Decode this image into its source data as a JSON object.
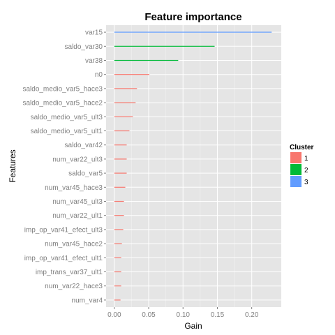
{
  "chart_data": {
    "type": "bar",
    "orientation": "horizontal",
    "title": "Feature importance",
    "xlabel": "Gain",
    "ylabel": "Features",
    "xlim": [
      -0.012,
      0.243
    ],
    "x_ticks": [
      0.0,
      0.05,
      0.1,
      0.15,
      0.2
    ],
    "x_tick_labels": [
      "0.00",
      "0.05",
      "0.10",
      "0.15",
      "0.20"
    ],
    "grid": true,
    "legend_position": "right",
    "legend_title": "Cluster",
    "clusters": [
      {
        "name": "1",
        "color": "#F8766D"
      },
      {
        "name": "2",
        "color": "#00BA38"
      },
      {
        "name": "3",
        "color": "#619CFF"
      }
    ],
    "bars": [
      {
        "feature": "var15",
        "gain": 0.229,
        "cluster": "3"
      },
      {
        "feature": "saldo_var30",
        "gain": 0.146,
        "cluster": "2"
      },
      {
        "feature": "var38",
        "gain": 0.093,
        "cluster": "2"
      },
      {
        "feature": "n0",
        "gain": 0.051,
        "cluster": "1"
      },
      {
        "feature": "saldo_medio_var5_hace3",
        "gain": 0.033,
        "cluster": "1"
      },
      {
        "feature": "saldo_medio_var5_hace2",
        "gain": 0.031,
        "cluster": "1"
      },
      {
        "feature": "saldo_medio_var5_ult3",
        "gain": 0.027,
        "cluster": "1"
      },
      {
        "feature": "saldo_medio_var5_ult1",
        "gain": 0.022,
        "cluster": "1"
      },
      {
        "feature": "saldo_var42",
        "gain": 0.018,
        "cluster": "1"
      },
      {
        "feature": "num_var22_ult3",
        "gain": 0.018,
        "cluster": "1"
      },
      {
        "feature": "saldo_var5",
        "gain": 0.018,
        "cluster": "1"
      },
      {
        "feature": "num_var45_hace3",
        "gain": 0.016,
        "cluster": "1"
      },
      {
        "feature": "num_var45_ult3",
        "gain": 0.014,
        "cluster": "1"
      },
      {
        "feature": "num_var22_ult1",
        "gain": 0.014,
        "cluster": "1"
      },
      {
        "feature": "imp_op_var41_efect_ult3",
        "gain": 0.013,
        "cluster": "1"
      },
      {
        "feature": "num_var45_hace2",
        "gain": 0.011,
        "cluster": "1"
      },
      {
        "feature": "imp_op_var41_efect_ult1",
        "gain": 0.01,
        "cluster": "1"
      },
      {
        "feature": "imp_trans_var37_ult1",
        "gain": 0.01,
        "cluster": "1"
      },
      {
        "feature": "num_var22_hace3",
        "gain": 0.01,
        "cluster": "1"
      },
      {
        "feature": "num_var4",
        "gain": 0.009,
        "cluster": "1"
      }
    ]
  }
}
